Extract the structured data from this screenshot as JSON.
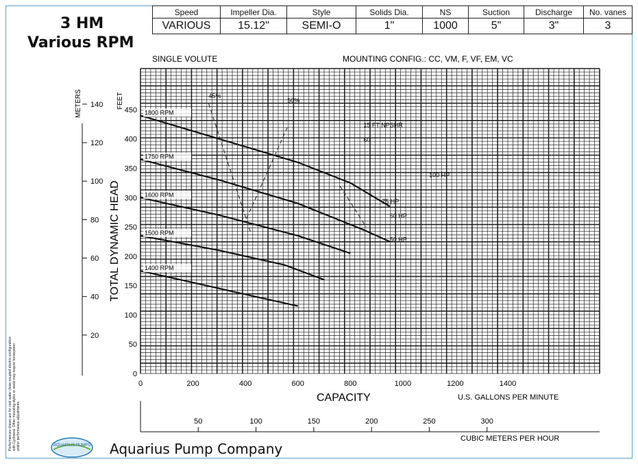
{
  "title": {
    "line1": "3 HM",
    "line2": "Various RPM"
  },
  "spec_table": {
    "headers": [
      "Speed",
      "Impeller Dia.",
      "Style",
      "Solids Dia.",
      "NS",
      "Suction",
      "Discharge",
      "No. vanes"
    ],
    "values": [
      "VARIOUS",
      "15.12\"",
      "SEMI-O",
      "1\"",
      "1000",
      "5\"",
      "3\"",
      "3"
    ]
  },
  "company": "Aquarius Pump Company",
  "logo_text": "AQUARIUS PUMPS",
  "side_note": "Performances shown are for cool water close-coupled electric configuration with Cycloseal. Other mounting styles or seals may require horsepower and/or performance adjustments.",
  "chart_data": {
    "type": "line",
    "title": "",
    "labels_top": {
      "left": "SINGLE VOLUTE",
      "right": "MOUNTING CONFIG.:  CC,  VM,  F,  VF,  EM,  VC"
    },
    "ylabel": "TOTAL DYNAMIC HEAD",
    "ylabel_feet": "FEET",
    "ylabel_meters": "METERS",
    "xlabel": "CAPACITY",
    "xunits_gpm": "U.S. GALLONS PER MINUTE",
    "xunits_m3h": "CUBIC METERS PER HOUR",
    "xlim": [
      0,
      1750
    ],
    "ylim_ft": [
      0,
      520
    ],
    "x_ticks_gpm": [
      "0",
      "200",
      "400",
      "600",
      "800",
      "1000",
      "1200",
      "1400"
    ],
    "x_ticks_m3h": [
      "50",
      "100",
      "150",
      "200",
      "250",
      "300"
    ],
    "y_ticks_ft": [
      "0",
      "50",
      "100",
      "150",
      "200",
      "250",
      "300",
      "350",
      "400",
      "450"
    ],
    "y_ticks_m": [
      "20",
      "40",
      "60",
      "80",
      "100",
      "120",
      "140"
    ],
    "series": [
      {
        "name": "1800 RPM",
        "x": [
          0,
          300,
          600,
          800,
          950
        ],
        "y": [
          440,
          400,
          360,
          325,
          285
        ]
      },
      {
        "name": "1750 RPM",
        "x": [
          0,
          300,
          600,
          850,
          950
        ],
        "y": [
          365,
          330,
          290,
          245,
          225
        ]
      },
      {
        "name": "1600 RPM",
        "x": [
          0,
          300,
          600,
          800
        ],
        "y": [
          300,
          270,
          235,
          205
        ]
      },
      {
        "name": "1500 RPM",
        "x": [
          0,
          300,
          550,
          700
        ],
        "y": [
          235,
          210,
          185,
          160
        ]
      },
      {
        "name": "1400 RPM",
        "x": [
          0,
          250,
          450,
          600
        ],
        "y": [
          175,
          150,
          130,
          115
        ]
      }
    ],
    "annotations": [
      "45%",
      "50%",
      "15 FT NPSHR",
      "60",
      "100 HP",
      "75 HP",
      "60 HP",
      "50 HP"
    ]
  }
}
